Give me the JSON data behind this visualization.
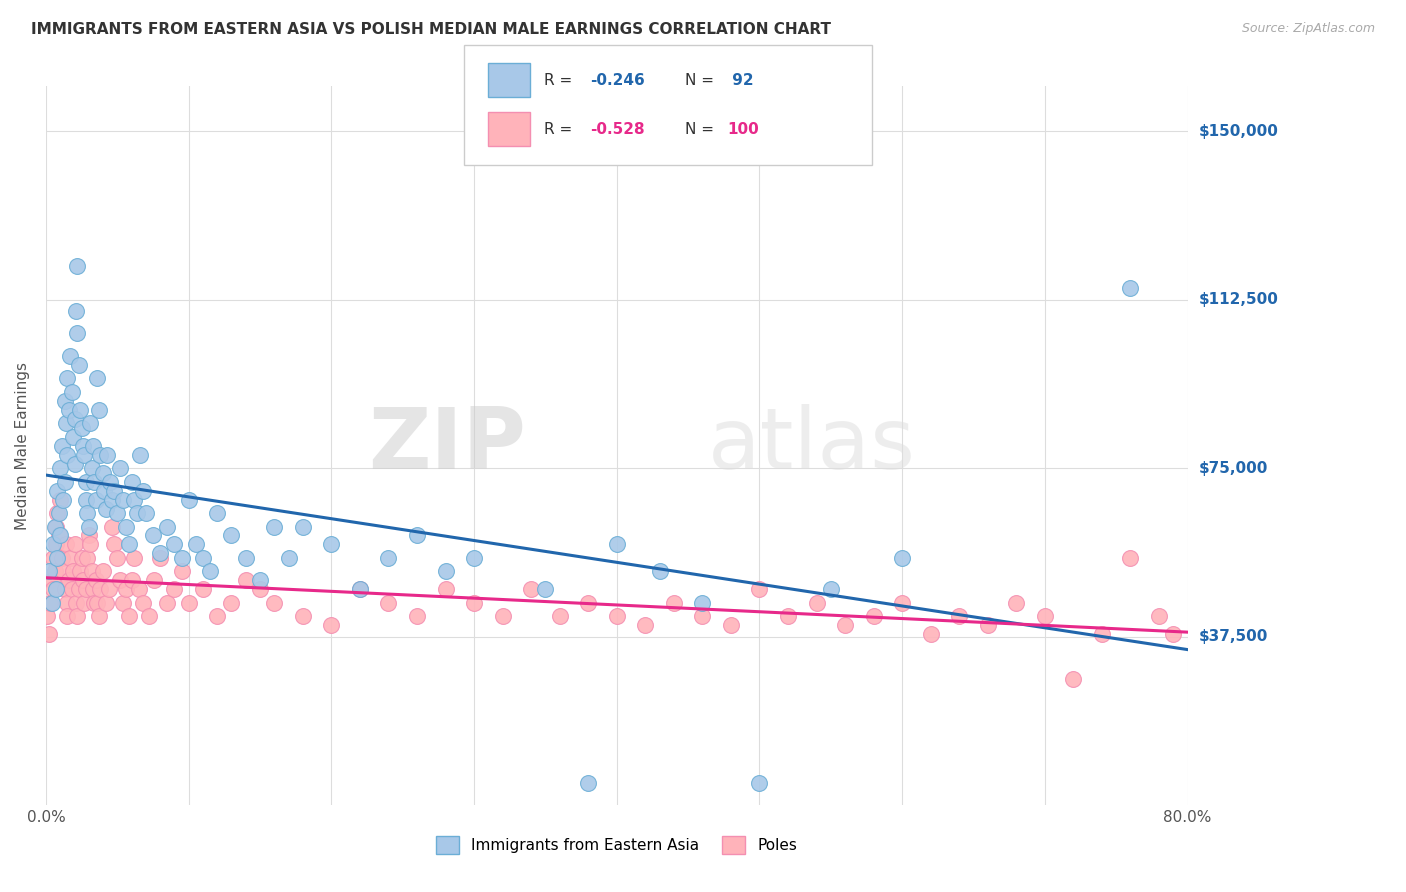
{
  "title": "IMMIGRANTS FROM EASTERN ASIA VS POLISH MEDIAN MALE EARNINGS CORRELATION CHART",
  "source": "Source: ZipAtlas.com",
  "ylabel": "Median Male Earnings",
  "ytick_labels": [
    "$37,500",
    "$75,000",
    "$112,500",
    "$150,000"
  ],
  "ytick_values": [
    37500,
    75000,
    112500,
    150000
  ],
  "ymin": 0,
  "ymax": 160000,
  "xmin": 0.0,
  "xmax": 0.8,
  "blue_R": -0.246,
  "blue_N": 92,
  "pink_R": -0.528,
  "pink_N": 100,
  "legend_label1": "Immigrants from Eastern Asia",
  "legend_label2": "Poles",
  "blue_color": "#a8c8e8",
  "blue_edge": "#6baed6",
  "pink_color": "#ffb3ba",
  "pink_edge": "#f48fb1",
  "blue_line_color": "#2166ac",
  "pink_line_color": "#e7298a",
  "watermark_zip": "ZIP",
  "watermark_atlas": "atlas",
  "background_color": "#ffffff",
  "grid_color": "#dddddd",
  "title_color": "#333333",
  "axis_label_color": "#555555",
  "blue_scatter_x": [
    0.002,
    0.004,
    0.005,
    0.006,
    0.007,
    0.008,
    0.008,
    0.009,
    0.01,
    0.01,
    0.011,
    0.012,
    0.013,
    0.013,
    0.014,
    0.015,
    0.015,
    0.016,
    0.017,
    0.018,
    0.019,
    0.02,
    0.02,
    0.021,
    0.022,
    0.022,
    0.023,
    0.024,
    0.025,
    0.026,
    0.027,
    0.028,
    0.028,
    0.029,
    0.03,
    0.031,
    0.032,
    0.033,
    0.034,
    0.035,
    0.036,
    0.037,
    0.038,
    0.04,
    0.041,
    0.042,
    0.043,
    0.045,
    0.046,
    0.048,
    0.05,
    0.052,
    0.054,
    0.056,
    0.058,
    0.06,
    0.062,
    0.064,
    0.066,
    0.068,
    0.07,
    0.075,
    0.08,
    0.085,
    0.09,
    0.095,
    0.1,
    0.105,
    0.11,
    0.115,
    0.12,
    0.13,
    0.14,
    0.15,
    0.16,
    0.17,
    0.18,
    0.2,
    0.22,
    0.24,
    0.26,
    0.28,
    0.3,
    0.35,
    0.38,
    0.4,
    0.43,
    0.46,
    0.5,
    0.55,
    0.6,
    0.76
  ],
  "blue_scatter_y": [
    52000,
    45000,
    58000,
    62000,
    48000,
    55000,
    70000,
    65000,
    60000,
    75000,
    80000,
    68000,
    72000,
    90000,
    85000,
    78000,
    95000,
    88000,
    100000,
    92000,
    82000,
    86000,
    76000,
    110000,
    105000,
    120000,
    98000,
    88000,
    84000,
    80000,
    78000,
    72000,
    68000,
    65000,
    62000,
    85000,
    75000,
    80000,
    72000,
    68000,
    95000,
    88000,
    78000,
    74000,
    70000,
    66000,
    78000,
    72000,
    68000,
    70000,
    65000,
    75000,
    68000,
    62000,
    58000,
    72000,
    68000,
    65000,
    78000,
    70000,
    65000,
    60000,
    56000,
    62000,
    58000,
    55000,
    68000,
    58000,
    55000,
    52000,
    65000,
    60000,
    55000,
    50000,
    62000,
    55000,
    62000,
    58000,
    48000,
    55000,
    60000,
    52000,
    55000,
    48000,
    5000,
    58000,
    52000,
    45000,
    5000,
    48000,
    55000,
    115000
  ],
  "pink_scatter_x": [
    0.001,
    0.002,
    0.003,
    0.004,
    0.005,
    0.005,
    0.006,
    0.007,
    0.007,
    0.008,
    0.009,
    0.01,
    0.011,
    0.012,
    0.013,
    0.014,
    0.015,
    0.015,
    0.016,
    0.017,
    0.018,
    0.019,
    0.02,
    0.021,
    0.022,
    0.023,
    0.024,
    0.025,
    0.026,
    0.027,
    0.028,
    0.029,
    0.03,
    0.031,
    0.032,
    0.033,
    0.034,
    0.035,
    0.036,
    0.037,
    0.038,
    0.04,
    0.042,
    0.044,
    0.046,
    0.048,
    0.05,
    0.052,
    0.054,
    0.056,
    0.058,
    0.06,
    0.062,
    0.065,
    0.068,
    0.072,
    0.076,
    0.08,
    0.085,
    0.09,
    0.095,
    0.1,
    0.11,
    0.12,
    0.13,
    0.14,
    0.15,
    0.16,
    0.18,
    0.2,
    0.22,
    0.24,
    0.26,
    0.28,
    0.3,
    0.32,
    0.34,
    0.36,
    0.38,
    0.4,
    0.42,
    0.44,
    0.46,
    0.48,
    0.5,
    0.52,
    0.54,
    0.56,
    0.58,
    0.6,
    0.62,
    0.64,
    0.66,
    0.68,
    0.7,
    0.72,
    0.74,
    0.76,
    0.78,
    0.79
  ],
  "pink_scatter_y": [
    42000,
    38000,
    45000,
    50000,
    48000,
    55000,
    52000,
    58000,
    62000,
    65000,
    60000,
    68000,
    55000,
    52000,
    48000,
    58000,
    45000,
    42000,
    50000,
    55000,
    48000,
    52000,
    58000,
    45000,
    42000,
    48000,
    52000,
    55000,
    50000,
    45000,
    48000,
    55000,
    60000,
    58000,
    52000,
    48000,
    45000,
    50000,
    45000,
    42000,
    48000,
    52000,
    45000,
    48000,
    62000,
    58000,
    55000,
    50000,
    45000,
    48000,
    42000,
    50000,
    55000,
    48000,
    45000,
    42000,
    50000,
    55000,
    45000,
    48000,
    52000,
    45000,
    48000,
    42000,
    45000,
    50000,
    48000,
    45000,
    42000,
    40000,
    48000,
    45000,
    42000,
    48000,
    45000,
    42000,
    48000,
    42000,
    45000,
    42000,
    40000,
    45000,
    42000,
    40000,
    48000,
    42000,
    45000,
    40000,
    42000,
    45000,
    38000,
    42000,
    40000,
    45000,
    42000,
    28000,
    38000,
    55000,
    42000,
    38000
  ]
}
